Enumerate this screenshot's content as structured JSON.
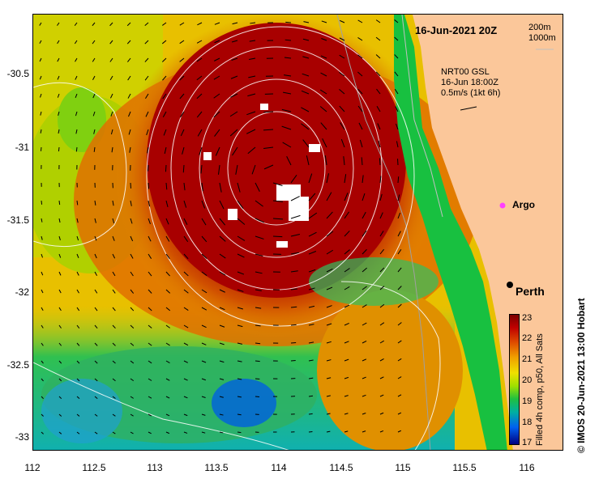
{
  "title": "16-Jun-2021 20Z",
  "depth_legend": [
    "200m",
    "1000m"
  ],
  "arrow_legend": [
    "NRT00 GSL",
    "16-Jun 18:00Z",
    "0.5m/s (1kt 6h)"
  ],
  "places": {
    "argo": "Argo",
    "perth": "Perth"
  },
  "x_ticks": [
    "112",
    "112.5",
    "113",
    "113.5",
    "114",
    "114.5",
    "115",
    "115.5",
    "116"
  ],
  "y_ticks": [
    "-30.5",
    "-31",
    "-31.5",
    "-32",
    "-32.5",
    "-33"
  ],
  "colorbar": {
    "ticks": [
      "23",
      "22",
      "21",
      "20",
      "19",
      "18",
      "17"
    ],
    "caption": "Filled 4h comp, p50, All Sats"
  },
  "credit": "© IMOS 20-Jun-2021 13:00 Hobart",
  "colors": {
    "land": "#fbc79a",
    "warm_core": "#a80000",
    "shelf": "#18c040",
    "cold": "#20a0d0"
  }
}
